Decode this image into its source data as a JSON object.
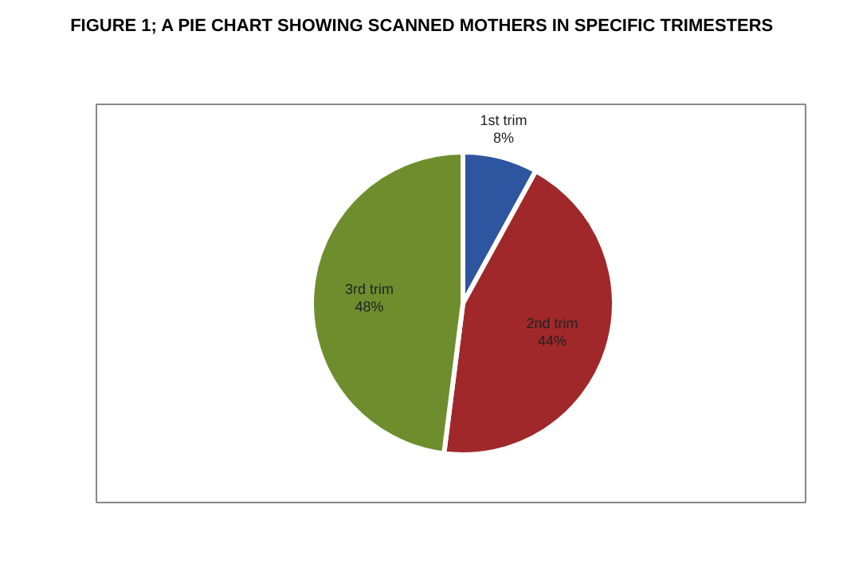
{
  "chart_data": {
    "type": "pie",
    "title": "FIGURE 1; A PIE CHART SHOWING SCANNED MOTHERS IN SPECIFIC TRIMESTERS",
    "categories": [
      "1st trim",
      "2nd trim",
      "3rd trim"
    ],
    "values": [
      8,
      44,
      48
    ],
    "value_labels": [
      "8%",
      "44%",
      "48%"
    ],
    "colors": [
      "#2e55a0",
      "#a0282a",
      "#6e8e2e"
    ]
  }
}
